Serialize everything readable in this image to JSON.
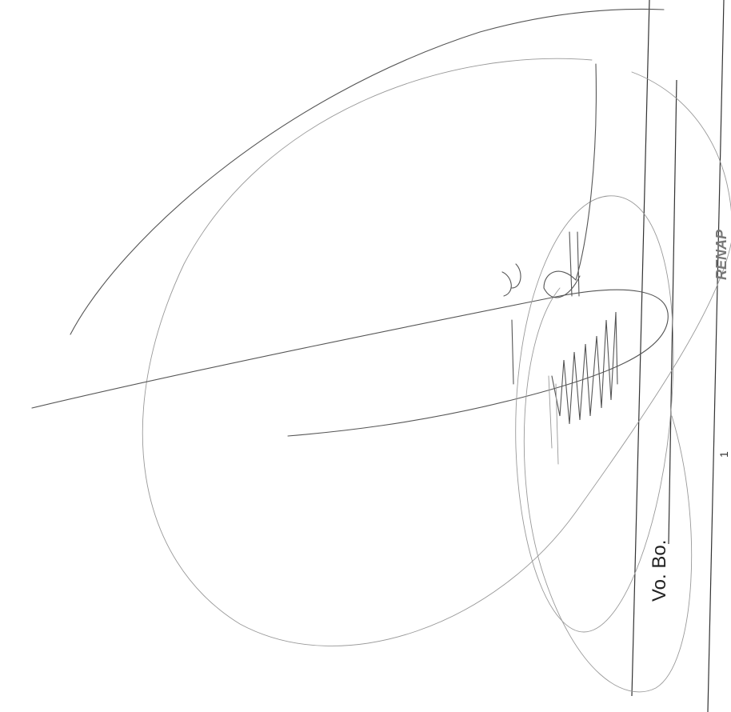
{
  "annotations": {
    "approval": "Vo. Bo.",
    "logo": "RENAP",
    "page_number": "1"
  }
}
